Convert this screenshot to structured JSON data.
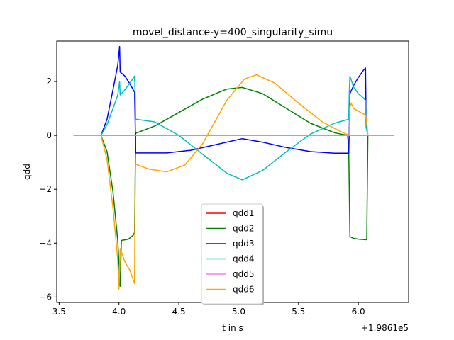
{
  "chart_data": {
    "type": "line",
    "title": "movel_distance-y=400_singularity_simu",
    "xlabel": "t in s",
    "ylabel": "qdd",
    "x_offset_label": "+1.9861e5",
    "xlim": [
      3.48,
      6.42
    ],
    "ylim": [
      -6.2,
      3.5
    ],
    "x_ticks": [
      3.5,
      4.0,
      4.5,
      5.0,
      5.5,
      6.0
    ],
    "x_tick_labels": [
      "3.5",
      "4.0",
      "4.5",
      "5.0",
      "5.5",
      "6.0"
    ],
    "y_ticks": [
      -6,
      -4,
      -2,
      0,
      2
    ],
    "y_tick_labels": [
      "−6",
      "−4",
      "−2",
      "0",
      "2"
    ],
    "grid": false,
    "legend_position": "lower-center",
    "series": [
      {
        "name": "qdd1",
        "color": "#ff0000",
        "x": [
          3.62,
          6.3
        ],
        "y": [
          0.0,
          0.0
        ]
      },
      {
        "name": "qdd2",
        "color": "#008000",
        "x": [
          3.62,
          3.85,
          3.9,
          3.95,
          3.99,
          4.01,
          4.02,
          4.08,
          4.12,
          4.13,
          4.14,
          4.3,
          4.5,
          4.7,
          4.9,
          5.03,
          5.2,
          5.4,
          5.6,
          5.8,
          5.91,
          5.92,
          5.93,
          5.96,
          6.0,
          6.06,
          6.07,
          6.08,
          6.3
        ],
        "y": [
          0.0,
          0.0,
          -0.6,
          -2.1,
          -3.9,
          -5.6,
          -3.9,
          -3.85,
          -3.7,
          -3.6,
          0.08,
          0.35,
          0.85,
          1.35,
          1.72,
          1.78,
          1.55,
          1.0,
          0.45,
          0.1,
          0.0,
          -0.5,
          -3.76,
          -3.82,
          -3.85,
          -3.87,
          -3.87,
          0.0,
          0.0
        ]
      },
      {
        "name": "qdd3",
        "color": "#0000ff",
        "x": [
          3.62,
          3.85,
          3.9,
          3.95,
          3.99,
          4.005,
          4.01,
          4.05,
          4.1,
          4.13,
          4.135,
          4.14,
          4.2,
          4.4,
          4.6,
          4.8,
          5.03,
          5.2,
          5.4,
          5.6,
          5.8,
          5.92,
          5.925,
          5.93,
          5.96,
          6.0,
          6.04,
          6.06,
          6.065,
          6.08,
          6.3
        ],
        "y": [
          0.0,
          0.0,
          0.6,
          1.7,
          2.6,
          3.3,
          2.35,
          2.2,
          1.85,
          1.6,
          0.6,
          -0.65,
          -0.65,
          -0.65,
          -0.55,
          -0.35,
          -0.12,
          -0.25,
          -0.45,
          -0.6,
          -0.66,
          -0.66,
          0.4,
          1.55,
          1.85,
          2.15,
          2.4,
          2.5,
          0.5,
          0.0,
          0.0
        ]
      },
      {
        "name": "qdd4",
        "color": "#00bfbf",
        "x": [
          3.62,
          3.85,
          3.9,
          3.95,
          3.99,
          4.005,
          4.01,
          4.05,
          4.1,
          4.13,
          4.135,
          4.14,
          4.3,
          4.5,
          4.7,
          4.9,
          5.03,
          5.2,
          5.4,
          5.6,
          5.8,
          5.92,
          5.925,
          5.93,
          5.96,
          6.0,
          6.04,
          6.06,
          6.065,
          6.08,
          6.3
        ],
        "y": [
          0.0,
          0.0,
          0.4,
          1.0,
          1.5,
          2.0,
          1.5,
          1.7,
          2.0,
          2.2,
          1.6,
          0.6,
          0.5,
          0.0,
          -0.7,
          -1.4,
          -1.65,
          -1.3,
          -0.6,
          0.05,
          0.45,
          0.6,
          1.7,
          2.2,
          1.8,
          1.55,
          1.4,
          1.3,
          0.3,
          0.0,
          0.0
        ]
      },
      {
        "name": "qdd5",
        "color": "#ee82ee",
        "x": [
          3.62,
          6.3
        ],
        "y": [
          0.0,
          0.0
        ]
      },
      {
        "name": "qdd6",
        "color": "#ffa500",
        "x": [
          3.62,
          3.85,
          3.9,
          3.95,
          3.99,
          4.0,
          4.01,
          4.05,
          4.09,
          4.13,
          4.135,
          4.14,
          4.25,
          4.4,
          4.55,
          4.7,
          4.9,
          5.05,
          5.15,
          5.3,
          5.5,
          5.7,
          5.85,
          5.925,
          5.93,
          5.94,
          5.96,
          6.0,
          6.05,
          6.06,
          6.07,
          6.08,
          6.3
        ],
        "y": [
          0.0,
          0.0,
          -0.9,
          -2.7,
          -4.6,
          -5.7,
          -4.2,
          -4.7,
          -5.0,
          -5.5,
          -2.0,
          -1.07,
          -1.25,
          -1.35,
          -1.1,
          -0.3,
          1.3,
          2.1,
          2.25,
          1.95,
          1.2,
          0.5,
          0.15,
          0.0,
          1.05,
          1.2,
          1.0,
          0.9,
          0.78,
          0.76,
          0.5,
          0.0,
          0.0
        ]
      }
    ]
  }
}
